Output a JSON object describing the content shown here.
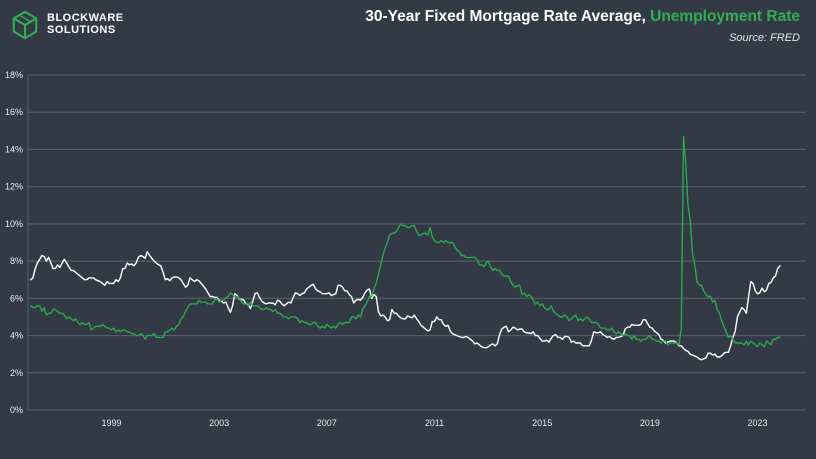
{
  "header": {
    "logo_line1": "BLOCKWARE",
    "logo_line2": "SOLUTIONS",
    "title_main": "30-Year Fixed Mortgage Rate Average,",
    "title_accent": "Unemployment Rate",
    "source": "Source: FRED"
  },
  "colors": {
    "background": "#333a46",
    "grid": "#5a6270",
    "mortgage_line": "#ffffff",
    "unemployment_line": "#2aa84e",
    "accent_green": "#31ae52"
  },
  "chart_data": {
    "type": "line",
    "title": "30-Year Fixed Mortgage Rate Average, Unemployment Rate",
    "source": "Source: FRED",
    "legend_position": "none",
    "grid": "horizontal",
    "x_start_year": 1996.0,
    "x_step_months": 1,
    "xlim": [
      1995.9,
      2024.8
    ],
    "ylim": [
      0,
      18
    ],
    "x_ticks": [
      1999,
      2003,
      2007,
      2011,
      2015,
      2019,
      2023
    ],
    "y_ticks": [
      0,
      2,
      4,
      6,
      8,
      10,
      12,
      14,
      16,
      18
    ],
    "y_tick_suffix": "%",
    "series": [
      {
        "name": "30-Year Fixed Mortgage Rate Average",
        "color": "#ffffff",
        "values": [
          7.0,
          7.1,
          7.6,
          7.9,
          8.1,
          8.3,
          8.25,
          8.0,
          8.2,
          7.9,
          7.6,
          7.6,
          7.8,
          7.65,
          7.9,
          8.1,
          7.9,
          7.7,
          7.5,
          7.5,
          7.4,
          7.3,
          7.2,
          7.1,
          7.0,
          7.0,
          7.1,
          7.1,
          7.1,
          7.0,
          6.95,
          6.9,
          6.8,
          6.7,
          6.9,
          6.8,
          6.8,
          6.8,
          7.0,
          6.9,
          7.1,
          7.6,
          7.6,
          7.9,
          7.8,
          7.85,
          7.75,
          7.9,
          8.2,
          8.3,
          8.25,
          8.15,
          8.5,
          8.3,
          8.15,
          8.0,
          7.9,
          7.8,
          7.75,
          7.4,
          7.0,
          7.05,
          6.95,
          7.1,
          7.15,
          7.15,
          7.1,
          7.0,
          6.8,
          6.6,
          6.7,
          7.1,
          7.0,
          6.9,
          7.0,
          6.95,
          6.8,
          6.65,
          6.5,
          6.3,
          6.1,
          6.1,
          6.05,
          6.05,
          5.9,
          5.85,
          5.75,
          5.8,
          5.5,
          5.25,
          5.6,
          6.25,
          6.15,
          5.95,
          5.95,
          5.9,
          5.7,
          5.65,
          5.45,
          5.85,
          6.25,
          6.3,
          6.05,
          5.85,
          5.75,
          5.7,
          5.75,
          5.75,
          5.75,
          5.65,
          5.9,
          5.85,
          5.7,
          5.6,
          5.7,
          5.8,
          5.75,
          6.05,
          6.3,
          6.25,
          6.15,
          6.25,
          6.3,
          6.5,
          6.6,
          6.7,
          6.75,
          6.5,
          6.4,
          6.35,
          6.25,
          6.25,
          6.25,
          6.3,
          6.15,
          6.2,
          6.25,
          6.7,
          6.7,
          6.6,
          6.4,
          6.4,
          6.2,
          6.1,
          5.75,
          5.9,
          5.95,
          5.9,
          6.05,
          6.3,
          6.45,
          6.5,
          6.0,
          6.2,
          6.1,
          5.3,
          5.05,
          5.1,
          5.0,
          4.8,
          4.85,
          5.4,
          5.2,
          5.2,
          5.05,
          4.95,
          4.9,
          4.9,
          5.05,
          5.0,
          4.95,
          5.1,
          4.9,
          4.75,
          4.55,
          4.45,
          4.35,
          4.25,
          4.3,
          4.75,
          4.75,
          5.0,
          4.85,
          4.85,
          4.6,
          4.5,
          4.55,
          4.25,
          4.1,
          4.05,
          4.0,
          3.95,
          3.9,
          3.9,
          3.95,
          3.9,
          3.8,
          3.7,
          3.55,
          3.6,
          3.5,
          3.4,
          3.35,
          3.35,
          3.4,
          3.5,
          3.55,
          3.45,
          3.55,
          4.05,
          4.35,
          4.45,
          4.5,
          4.2,
          4.3,
          4.45,
          4.4,
          4.3,
          4.35,
          4.35,
          4.2,
          4.15,
          4.15,
          4.1,
          4.2,
          4.0,
          4.0,
          3.85,
          3.7,
          3.7,
          3.75,
          3.65,
          3.85,
          4.0,
          4.05,
          3.9,
          3.9,
          3.8,
          3.95,
          3.95,
          3.9,
          3.65,
          3.7,
          3.6,
          3.6,
          3.6,
          3.45,
          3.45,
          3.45,
          3.45,
          3.75,
          4.2,
          4.15,
          4.15,
          4.2,
          4.05,
          4.0,
          3.9,
          3.95,
          3.85,
          3.8,
          3.9,
          3.9,
          3.95,
          4.0,
          4.35,
          4.45,
          4.45,
          4.6,
          4.55,
          4.55,
          4.55,
          4.6,
          4.85,
          4.85,
          4.65,
          4.45,
          4.4,
          4.25,
          4.15,
          4.05,
          3.8,
          3.75,
          3.6,
          3.65,
          3.7,
          3.7,
          3.7,
          3.6,
          3.45,
          3.45,
          3.3,
          3.2,
          3.15,
          3.0,
          2.95,
          2.9,
          2.85,
          2.75,
          2.7,
          2.75,
          2.8,
          3.05,
          3.05,
          2.95,
          3.0,
          2.85,
          2.85,
          2.9,
          3.05,
          3.1,
          3.1,
          3.45,
          3.9,
          4.2,
          5.0,
          5.25,
          5.5,
          5.4,
          5.2,
          6.1,
          6.9,
          6.8,
          6.4,
          6.25,
          6.3,
          6.55,
          6.35,
          6.45,
          6.8,
          6.85,
          7.1,
          7.2,
          7.6,
          7.75
        ]
      },
      {
        "name": "Unemployment Rate",
        "color": "#2aa84e",
        "values": [
          5.6,
          5.5,
          5.5,
          5.6,
          5.6,
          5.3,
          5.5,
          5.1,
          5.2,
          5.2,
          5.4,
          5.4,
          5.3,
          5.2,
          5.2,
          5.1,
          4.9,
          5.0,
          4.9,
          4.8,
          4.9,
          4.7,
          4.6,
          4.7,
          4.6,
          4.6,
          4.7,
          4.3,
          4.4,
          4.5,
          4.5,
          4.5,
          4.6,
          4.5,
          4.4,
          4.4,
          4.3,
          4.4,
          4.2,
          4.3,
          4.2,
          4.3,
          4.3,
          4.2,
          4.2,
          4.1,
          4.1,
          4.0,
          4.0,
          4.1,
          4.0,
          3.8,
          4.0,
          4.0,
          4.0,
          4.1,
          3.9,
          3.9,
          3.9,
          3.9,
          4.2,
          4.2,
          4.3,
          4.4,
          4.3,
          4.5,
          4.6,
          4.9,
          5.0,
          5.3,
          5.5,
          5.7,
          5.7,
          5.7,
          5.7,
          5.9,
          5.8,
          5.8,
          5.8,
          5.7,
          5.7,
          5.7,
          5.9,
          6.0,
          5.8,
          5.9,
          5.9,
          6.0,
          6.1,
          6.3,
          6.2,
          6.1,
          6.1,
          6.0,
          5.8,
          5.7,
          5.7,
          5.6,
          5.8,
          5.6,
          5.6,
          5.6,
          5.5,
          5.4,
          5.4,
          5.5,
          5.4,
          5.4,
          5.3,
          5.4,
          5.2,
          5.2,
          5.1,
          5.0,
          5.0,
          4.9,
          5.0,
          5.0,
          5.0,
          4.9,
          4.7,
          4.8,
          4.7,
          4.7,
          4.6,
          4.6,
          4.7,
          4.7,
          4.5,
          4.4,
          4.5,
          4.4,
          4.6,
          4.5,
          4.4,
          4.5,
          4.4,
          4.6,
          4.7,
          4.6,
          4.7,
          4.7,
          4.7,
          5.0,
          5.0,
          4.9,
          5.1,
          5.0,
          5.4,
          5.6,
          5.8,
          6.1,
          6.1,
          6.5,
          6.8,
          7.3,
          7.8,
          8.3,
          8.7,
          9.0,
          9.4,
          9.5,
          9.5,
          9.6,
          9.8,
          10.0,
          9.9,
          9.9,
          9.8,
          9.8,
          9.9,
          9.9,
          9.6,
          9.4,
          9.4,
          9.5,
          9.5,
          9.4,
          9.8,
          9.3,
          9.1,
          9.0,
          9.0,
          9.1,
          9.0,
          9.1,
          9.0,
          9.0,
          9.0,
          8.8,
          8.6,
          8.5,
          8.3,
          8.3,
          8.2,
          8.2,
          8.2,
          8.2,
          8.2,
          8.1,
          7.8,
          7.8,
          7.7,
          7.9,
          8.0,
          7.7,
          7.5,
          7.6,
          7.5,
          7.5,
          7.3,
          7.2,
          7.2,
          7.2,
          6.9,
          6.7,
          6.6,
          6.7,
          6.7,
          6.2,
          6.3,
          6.1,
          6.2,
          6.1,
          5.9,
          5.7,
          5.8,
          5.6,
          5.7,
          5.5,
          5.4,
          5.4,
          5.6,
          5.3,
          5.2,
          5.1,
          5.0,
          5.0,
          5.1,
          5.0,
          4.8,
          4.9,
          5.0,
          5.1,
          4.8,
          4.9,
          4.8,
          4.9,
          5.0,
          4.9,
          4.7,
          4.7,
          4.7,
          4.6,
          4.4,
          4.4,
          4.4,
          4.3,
          4.3,
          4.4,
          4.2,
          4.1,
          4.2,
          4.1,
          4.0,
          4.1,
          4.0,
          4.0,
          3.8,
          4.0,
          3.8,
          3.8,
          3.7,
          3.8,
          3.8,
          3.9,
          4.0,
          3.8,
          3.8,
          3.7,
          3.7,
          3.6,
          3.7,
          3.7,
          3.5,
          3.6,
          3.6,
          3.6,
          3.6,
          3.5,
          4.4,
          14.7,
          13.2,
          11.0,
          10.2,
          8.4,
          7.8,
          6.9,
          6.7,
          6.7,
          6.4,
          6.2,
          6.1,
          6.1,
          5.8,
          5.9,
          5.4,
          5.2,
          4.8,
          4.5,
          4.2,
          3.9,
          4.0,
          3.8,
          3.6,
          3.6,
          3.6,
          3.6,
          3.5,
          3.7,
          3.5,
          3.7,
          3.6,
          3.5,
          3.4,
          3.6,
          3.5,
          3.4,
          3.7,
          3.6,
          3.5,
          3.8,
          3.8,
          3.9,
          3.9
        ]
      }
    ]
  }
}
